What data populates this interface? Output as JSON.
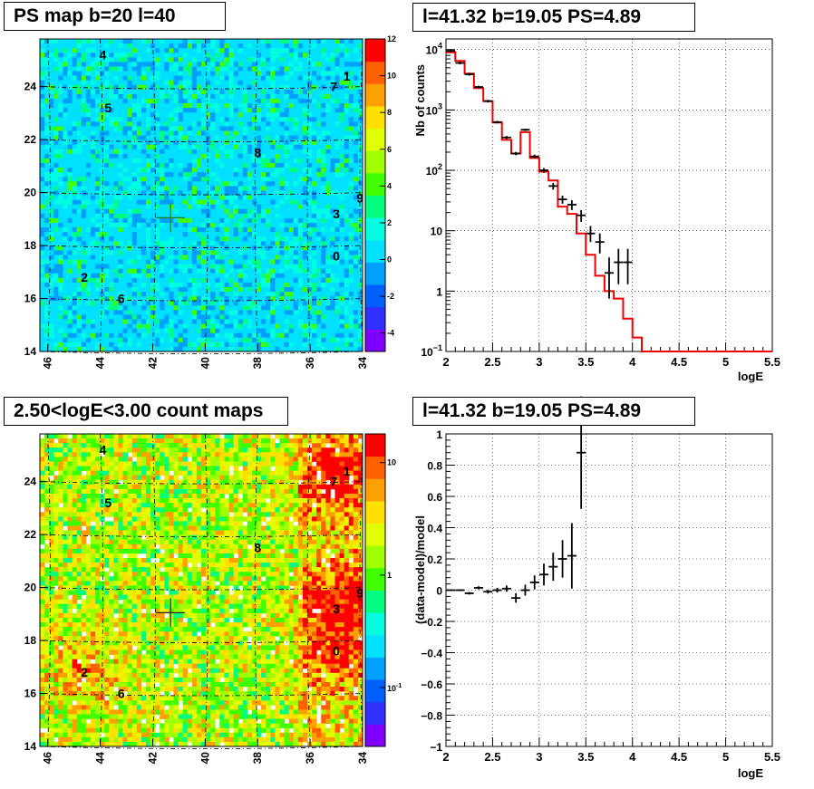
{
  "panels": {
    "tl_title": "PS map b=20 l=40",
    "tr_title": "l=41.32 b=19.05 PS=4.89",
    "bl_title": "2.50<logE<3.00 count maps",
    "br_title": "l=41.32 b=19.05 PS=4.89"
  },
  "colors": {
    "model_line": "#ee0000",
    "data_points": "#000000",
    "crosshair_tl": "#2a7a00",
    "crosshair_bl": "#222222"
  },
  "chart_data": [
    {
      "type": "heatmap",
      "title": "PS map b=20 l=40",
      "x_ticks": [
        "46",
        "44",
        "42",
        "40",
        "38",
        "36",
        "34"
      ],
      "y_ticks": [
        "14",
        "16",
        "18",
        "20",
        "22",
        "24"
      ],
      "xlim": [
        46.3,
        34
      ],
      "ylim": [
        14,
        25.8
      ],
      "colorbar_ticks": [
        "12",
        "10",
        "8",
        "6",
        "4",
        "2",
        "0",
        "-2",
        "-4"
      ],
      "colorbar_range": [
        -5,
        12
      ],
      "colormap": [
        "#7f00ff",
        "#3030ff",
        "#0060ff",
        "#00a0ff",
        "#00e0ff",
        "#00ffe0",
        "#00ff80",
        "#40ff00",
        "#a0ff00",
        "#e0ff00",
        "#ffe000",
        "#ffa000",
        "#ff6000",
        "#ff0000"
      ],
      "sources": [
        {
          "label": "4",
          "l": 43.9,
          "b": 25.2
        },
        {
          "label": "1",
          "l": 34.6,
          "b": 24.4
        },
        {
          "label": "7",
          "l": 35.1,
          "b": 24.0
        },
        {
          "label": "5",
          "l": 43.7,
          "b": 23.2
        },
        {
          "label": "8",
          "l": 38.0,
          "b": 21.5
        },
        {
          "label": "9",
          "l": 34.1,
          "b": 19.8
        },
        {
          "label": "3",
          "l": 35.0,
          "b": 19.2
        },
        {
          "label": "0",
          "l": 35.0,
          "b": 17.6
        },
        {
          "label": "2",
          "l": 44.6,
          "b": 16.8
        },
        {
          "label": "6",
          "l": 43.2,
          "b": 16.0
        }
      ],
      "marker": {
        "l": 41.32,
        "b": 19.05
      }
    },
    {
      "type": "line",
      "title": "l=41.32 b=19.05 PS=4.89",
      "xlabel": "logE",
      "ylabel": "Nb of counts",
      "yscale": "log",
      "xlim": [
        2,
        5.5
      ],
      "ylim": [
        0.1,
        15000
      ],
      "x_ticks": [
        "2",
        "2.5",
        "3",
        "3.5",
        "4",
        "4.5",
        "5",
        "5.5"
      ],
      "y_ticks": [
        {
          "v": 0.1,
          "base": "10",
          "exp": "−1"
        },
        {
          "v": 1,
          "text": "1"
        },
        {
          "v": 10,
          "text": "10"
        },
        {
          "v": 100,
          "base": "10",
          "exp": "2"
        },
        {
          "v": 1000,
          "base": "10",
          "exp": "3"
        },
        {
          "v": 10000,
          "base": "10",
          "exp": "4"
        }
      ],
      "model_series": {
        "name": "model",
        "edges": [
          2.0,
          2.1,
          2.2,
          2.3,
          2.4,
          2.5,
          2.6,
          2.7,
          2.8,
          2.9,
          3.0,
          3.1,
          3.2,
          3.3,
          3.4,
          3.5,
          3.6,
          3.7,
          3.8,
          3.9,
          4.0,
          4.1,
          5.5
        ],
        "values": [
          9000,
          6500,
          4000,
          2300,
          1400,
          620,
          320,
          190,
          430,
          160,
          95,
          68,
          25,
          19,
          9,
          4,
          1.8,
          1.0,
          0.75,
          0.35,
          0.17,
          0.1
        ]
      },
      "data_series": {
        "name": "data",
        "points": [
          {
            "x": 2.05,
            "y": 9500,
            "lo": 9000,
            "hi": 10000
          },
          {
            "x": 2.15,
            "y": 6000,
            "lo": 5700,
            "hi": 6300
          },
          {
            "x": 2.25,
            "y": 3900,
            "lo": 3700,
            "hi": 4100
          },
          {
            "x": 2.35,
            "y": 2400,
            "lo": 2280,
            "hi": 2520
          },
          {
            "x": 2.45,
            "y": 1400,
            "lo": 1330,
            "hi": 1470
          },
          {
            "x": 2.55,
            "y": 630,
            "lo": 600,
            "hi": 660
          },
          {
            "x": 2.65,
            "y": 350,
            "lo": 330,
            "hi": 370
          },
          {
            "x": 2.75,
            "y": 190,
            "lo": 178,
            "hi": 202
          },
          {
            "x": 2.85,
            "y": 470,
            "lo": 450,
            "hi": 490
          },
          {
            "x": 2.95,
            "y": 170,
            "lo": 158,
            "hi": 182
          },
          {
            "x": 3.05,
            "y": 100,
            "lo": 91,
            "hi": 109
          },
          {
            "x": 3.15,
            "y": 55,
            "lo": 48,
            "hi": 62
          },
          {
            "x": 3.25,
            "y": 33,
            "lo": 28,
            "hi": 38
          },
          {
            "x": 3.35,
            "y": 27,
            "lo": 22,
            "hi": 32
          },
          {
            "x": 3.45,
            "y": 18,
            "lo": 14,
            "hi": 22
          },
          {
            "x": 3.55,
            "y": 9,
            "lo": 6.5,
            "hi": 12
          },
          {
            "x": 3.65,
            "y": 6.5,
            "lo": 4.2,
            "hi": 9
          },
          {
            "x": 3.75,
            "y": 2,
            "lo": 0.75,
            "hi": 3.6
          },
          {
            "x": 3.85,
            "y": 3,
            "lo": 1.3,
            "hi": 5
          },
          {
            "x": 3.95,
            "y": 3,
            "lo": 1.3,
            "hi": 5
          }
        ]
      }
    },
    {
      "type": "heatmap",
      "title": "2.50<logE<3.00 count maps",
      "x_ticks": [
        "46",
        "44",
        "42",
        "40",
        "38",
        "36",
        "34"
      ],
      "y_ticks": [
        "14",
        "16",
        "18",
        "20",
        "22",
        "24"
      ],
      "xlim": [
        46.3,
        34
      ],
      "ylim": [
        14,
        25.8
      ],
      "colorbar_scale": "log",
      "colorbar_ticks": [
        {
          "v": 10,
          "text": "10"
        },
        {
          "v": 1,
          "text": "1"
        },
        {
          "v": 0.1,
          "base": "10",
          "exp": "-1"
        }
      ],
      "colorbar_range": [
        0.03,
        18
      ],
      "colormap": [
        "#7f00ff",
        "#3030ff",
        "#0060ff",
        "#00a0ff",
        "#00e0ff",
        "#00ffe0",
        "#00ff80",
        "#40ff00",
        "#a0ff00",
        "#e0ff00",
        "#ffe000",
        "#ffa000",
        "#ff6000",
        "#ff0000"
      ],
      "sources": [
        {
          "label": "4",
          "l": 43.9,
          "b": 25.2
        },
        {
          "label": "1",
          "l": 34.6,
          "b": 24.4
        },
        {
          "label": "7",
          "l": 35.1,
          "b": 24.0
        },
        {
          "label": "5",
          "l": 43.7,
          "b": 23.2
        },
        {
          "label": "8",
          "l": 38.0,
          "b": 21.5
        },
        {
          "label": "9",
          "l": 34.1,
          "b": 19.8
        },
        {
          "label": "3",
          "l": 35.0,
          "b": 19.2
        },
        {
          "label": "0",
          "l": 35.0,
          "b": 17.6
        },
        {
          "label": "2",
          "l": 44.6,
          "b": 16.8
        },
        {
          "label": "6",
          "l": 43.2,
          "b": 16.0
        }
      ],
      "marker": {
        "l": 41.32,
        "b": 19.05
      }
    },
    {
      "type": "scatter",
      "title": "l=41.32 b=19.05 PS=4.89",
      "xlabel": "logE",
      "ylabel": "(data-model)/model",
      "xlim": [
        2,
        5.5
      ],
      "ylim": [
        -1,
        1
      ],
      "x_ticks": [
        "2",
        "2.5",
        "3",
        "3.5",
        "4",
        "4.5",
        "5",
        "5.5"
      ],
      "y_ticks": [
        "1",
        "0.8",
        "0.6",
        "0.4",
        "0.2",
        "0",
        "−0.2",
        "−0.4",
        "−0.6",
        "−0.8",
        "−1"
      ],
      "points": [
        {
          "x": 2.05,
          "y": 0.0,
          "err": 0.005
        },
        {
          "x": 2.15,
          "y": 0.0,
          "err": 0.006
        },
        {
          "x": 2.25,
          "y": -0.02,
          "err": 0.008
        },
        {
          "x": 2.35,
          "y": 0.015,
          "err": 0.01
        },
        {
          "x": 2.45,
          "y": -0.01,
          "err": 0.012
        },
        {
          "x": 2.55,
          "y": 0.0,
          "err": 0.015
        },
        {
          "x": 2.65,
          "y": 0.01,
          "err": 0.02
        },
        {
          "x": 2.75,
          "y": -0.05,
          "err": 0.03
        },
        {
          "x": 2.85,
          "y": 0.0,
          "err": 0.035
        },
        {
          "x": 2.95,
          "y": 0.05,
          "err": 0.045
        },
        {
          "x": 3.05,
          "y": 0.1,
          "err": 0.07
        },
        {
          "x": 3.15,
          "y": 0.15,
          "err": 0.09
        },
        {
          "x": 3.25,
          "y": 0.2,
          "err": 0.12
        },
        {
          "x": 3.35,
          "y": 0.22,
          "err": 0.21
        },
        {
          "x": 3.45,
          "y": 0.88,
          "err": 0.36
        }
      ]
    }
  ]
}
